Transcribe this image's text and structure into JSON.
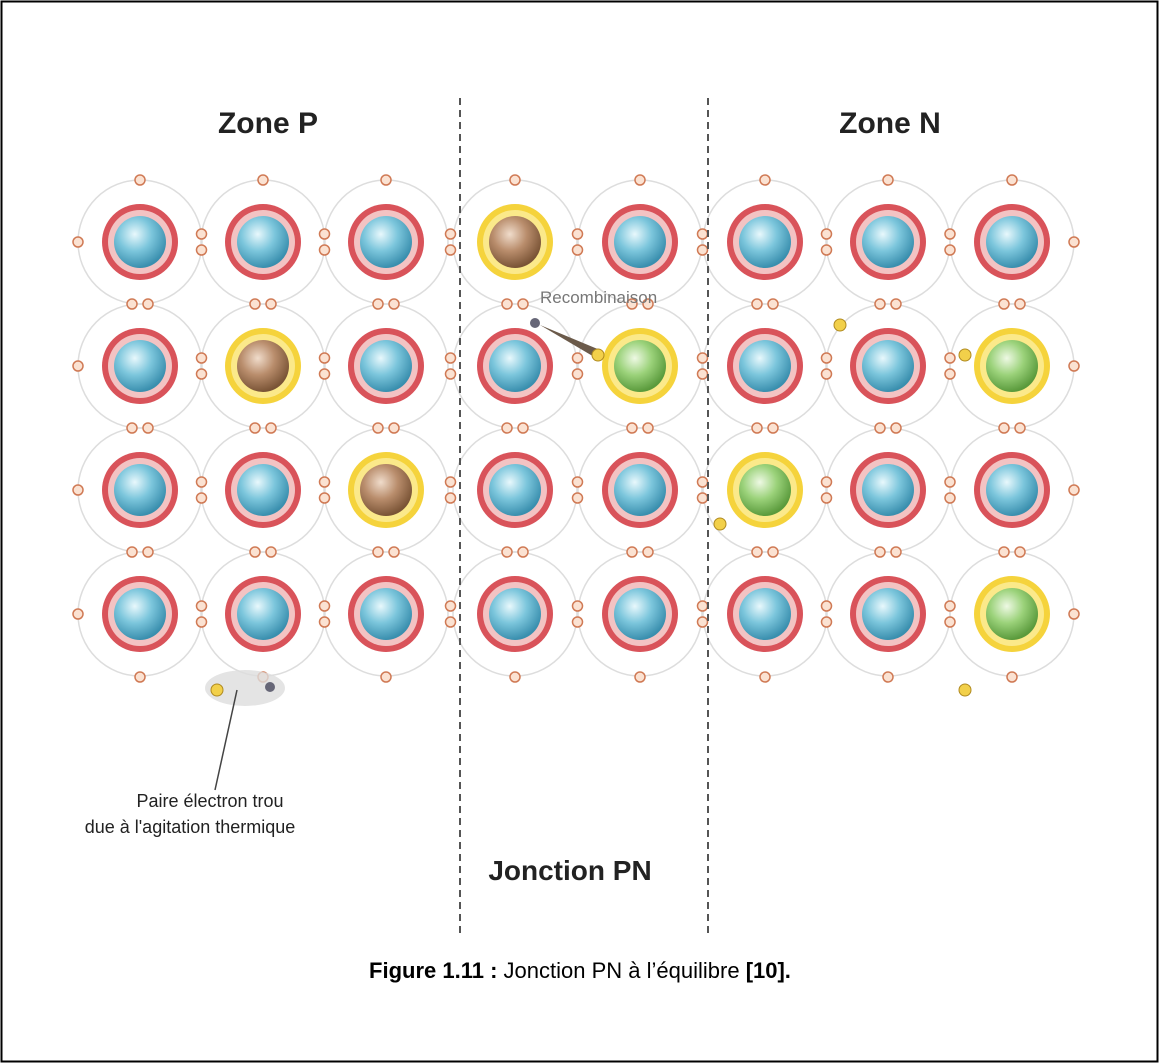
{
  "figure": {
    "zone_p": "Zone P",
    "zone_n": "Zone N",
    "junction": "Jonction PN",
    "recombination": "Recombinaison",
    "pair_line1": "Paire électron trou",
    "pair_line2": "due à l'agitation thermique"
  },
  "caption": {
    "label": "Figure 1.11 :",
    "text": " Jonction PN à l’équilibre ",
    "ref": "[10]."
  }
}
